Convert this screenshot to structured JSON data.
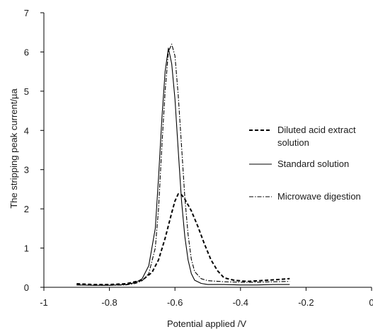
{
  "chart_data": {
    "type": "line",
    "title": "",
    "xlabel": "Potential  applied /V",
    "ylabel": "The stripping peak current/µa",
    "xlim": [
      -1,
      0
    ],
    "ylim": [
      0,
      7
    ],
    "x_ticks": [
      -1,
      -0.8,
      -0.6,
      -0.4,
      -0.2,
      0
    ],
    "x_tick_labels": [
      "-1",
      "-0.8",
      "-0.6",
      "-0.4",
      "-0.2",
      "0"
    ],
    "y_ticks": [
      0,
      1,
      2,
      3,
      4,
      5,
      6,
      7
    ],
    "y_tick_labels": [
      "0",
      "1",
      "2",
      "3",
      "4",
      "5",
      "6",
      "7"
    ],
    "grid": false,
    "legend_position": "right",
    "series": [
      {
        "name": "Diluted acid extract solution",
        "legend_lines": [
          "Diluted acid extract",
          "solution"
        ],
        "style": "dashed",
        "color": "#000000",
        "x": [
          -0.9,
          -0.85,
          -0.8,
          -0.75,
          -0.7,
          -0.67,
          -0.65,
          -0.63,
          -0.61,
          -0.6,
          -0.59,
          -0.58,
          -0.57,
          -0.55,
          -0.53,
          -0.51,
          -0.49,
          -0.47,
          -0.45,
          -0.42,
          -0.38,
          -0.34,
          -0.3,
          -0.25
        ],
        "y": [
          0.09,
          0.07,
          0.07,
          0.09,
          0.18,
          0.38,
          0.7,
          1.25,
          1.9,
          2.2,
          2.38,
          2.36,
          2.25,
          1.95,
          1.55,
          1.1,
          0.7,
          0.42,
          0.24,
          0.18,
          0.15,
          0.17,
          0.19,
          0.22
        ]
      },
      {
        "name": "Standard solution",
        "legend_lines": [
          "Standard solution"
        ],
        "style": "solid",
        "color": "#000000",
        "x": [
          -0.9,
          -0.85,
          -0.8,
          -0.75,
          -0.72,
          -0.7,
          -0.68,
          -0.66,
          -0.65,
          -0.64,
          -0.63,
          -0.62,
          -0.61,
          -0.6,
          -0.59,
          -0.58,
          -0.57,
          -0.56,
          -0.55,
          -0.54,
          -0.52,
          -0.5,
          -0.45,
          -0.4,
          -0.35,
          -0.3,
          -0.25
        ],
        "y": [
          0.06,
          0.05,
          0.05,
          0.07,
          0.12,
          0.22,
          0.55,
          1.5,
          2.8,
          4.3,
          5.5,
          6.1,
          5.7,
          4.8,
          3.5,
          2.2,
          1.3,
          0.7,
          0.35,
          0.18,
          0.1,
          0.07,
          0.07,
          0.06,
          0.06,
          0.07,
          0.07
        ]
      },
      {
        "name": "Microwave digestion",
        "legend_lines": [
          "Microwave digestion"
        ],
        "style": "dashdot",
        "color": "#000000",
        "x": [
          -0.9,
          -0.85,
          -0.8,
          -0.75,
          -0.72,
          -0.7,
          -0.68,
          -0.66,
          -0.65,
          -0.64,
          -0.63,
          -0.62,
          -0.61,
          -0.6,
          -0.59,
          -0.58,
          -0.57,
          -0.56,
          -0.55,
          -0.54,
          -0.52,
          -0.5,
          -0.45,
          -0.4,
          -0.35,
          -0.3,
          -0.25
        ],
        "y": [
          0.06,
          0.05,
          0.05,
          0.06,
          0.1,
          0.17,
          0.35,
          1.0,
          2.0,
          3.6,
          5.0,
          6.0,
          6.2,
          5.9,
          4.9,
          3.6,
          2.3,
          1.35,
          0.72,
          0.4,
          0.22,
          0.17,
          0.14,
          0.13,
          0.13,
          0.14,
          0.15
        ]
      }
    ]
  }
}
